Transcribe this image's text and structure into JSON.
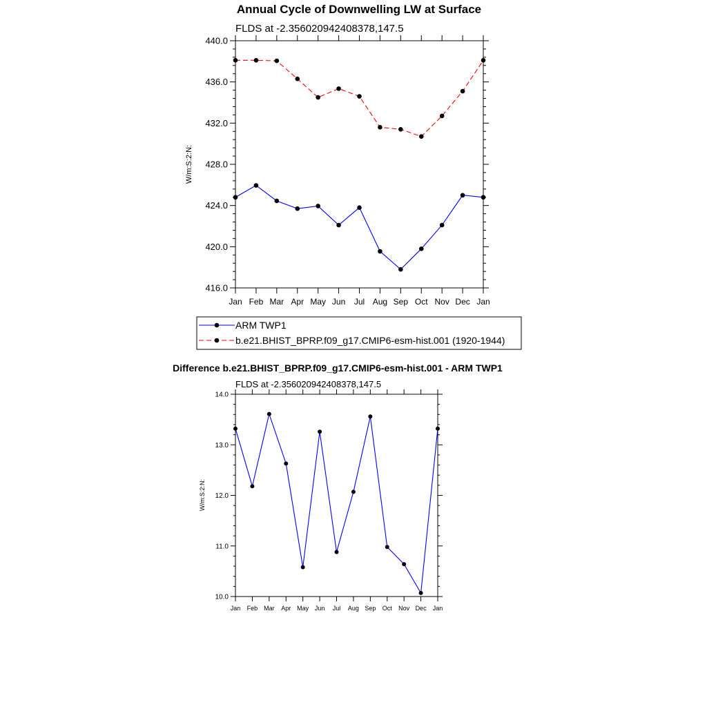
{
  "chart_data": [
    {
      "type": "line",
      "title": "Annual Cycle of Downwelling LW at Surface",
      "subtitle": "FLDS at -2.356020942408378,147.5",
      "ylabel": "W/m:S:2:N:",
      "xlabel": "",
      "ylim": [
        416.0,
        440.0
      ],
      "y_ticks": [
        "416.0",
        "420.0",
        "424.0",
        "428.0",
        "432.0",
        "436.0",
        "440.0"
      ],
      "categories": [
        "Jan",
        "Feb",
        "Mar",
        "Apr",
        "May",
        "Jun",
        "Jul",
        "Aug",
        "Sep",
        "Oct",
        "Nov",
        "Dec",
        "Jan"
      ],
      "legend_position": "bottom",
      "series": [
        {
          "name": "ARM TWP1",
          "color": "#0000ff",
          "dash": "solid",
          "values": [
            424.8,
            425.95,
            424.45,
            423.7,
            423.95,
            422.1,
            423.8,
            419.55,
            417.8,
            419.8,
            422.1,
            425.0,
            424.8
          ]
        },
        {
          "name": "b.e21.BHIST_BPRP.f09_g17.CMIP6-esm-hist.001 (1920-1944)",
          "color": "#ff0000",
          "dash": "dashed",
          "values": [
            438.1,
            438.1,
            438.05,
            436.3,
            434.5,
            435.35,
            434.6,
            431.6,
            431.4,
            430.7,
            432.7,
            435.1,
            438.1
          ]
        }
      ]
    },
    {
      "type": "line",
      "title": "Difference b.e21.BHIST_BPRP.f09_g17.CMIP6-esm-hist.001 - ARM TWP1",
      "subtitle": "FLDS at -2.356020942408378,147.5",
      "ylabel": "W/m:S:2:N:",
      "xlabel": "",
      "ylim": [
        10.0,
        14.0
      ],
      "y_ticks": [
        "10.0",
        "11.0",
        "12.0",
        "13.0",
        "14.0"
      ],
      "categories": [
        "Jan",
        "Feb",
        "Mar",
        "Apr",
        "May",
        "Jun",
        "Jul",
        "Aug",
        "Sep",
        "Oct",
        "Nov",
        "Dec",
        "Jan"
      ],
      "series": [
        {
          "name": "Difference",
          "color": "#0000ff",
          "dash": "solid",
          "values": [
            13.32,
            12.18,
            13.61,
            12.63,
            10.58,
            13.26,
            10.88,
            12.07,
            13.56,
            10.98,
            10.64,
            10.07,
            13.32
          ]
        }
      ]
    }
  ]
}
